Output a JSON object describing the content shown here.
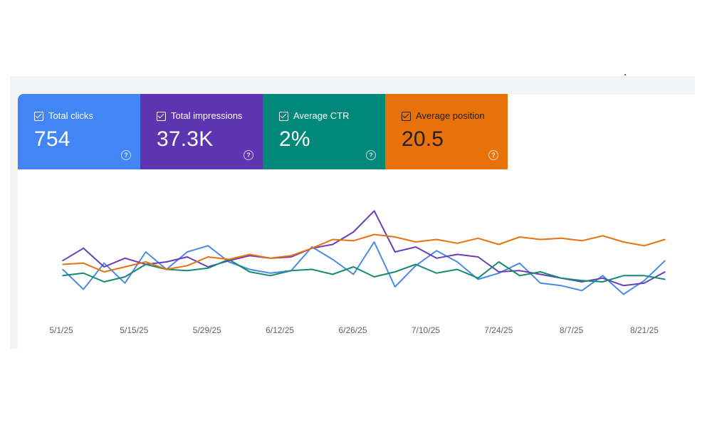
{
  "metrics": [
    {
      "label": "Total clicks",
      "value": "754",
      "color": "#4285f4",
      "text_color": "#ffffff"
    },
    {
      "label": "Total impressions",
      "value": "37.3K",
      "color": "#5e35b1",
      "text_color": "#ffffff"
    },
    {
      "label": "Average CTR",
      "value": "2%",
      "color": "#00897b",
      "text_color": "#ffffff"
    },
    {
      "label": "Average position",
      "value": "20.5",
      "color": "#e8710a",
      "text_color": "#202124"
    }
  ],
  "help_glyph": "?",
  "chart_data": {
    "type": "line",
    "x_tick_labels": [
      "5/1/25",
      "5/15/25",
      "5/29/25",
      "6/12/25",
      "6/26/25",
      "7/10/25",
      "7/24/25",
      "8/7/25",
      "8/21/25"
    ],
    "x": [
      "5/1/25",
      "5/5/25",
      "5/9/25",
      "5/13/25",
      "5/17/25",
      "5/21/25",
      "5/25/25",
      "5/29/25",
      "6/2/25",
      "6/6/25",
      "6/10/25",
      "6/14/25",
      "6/18/25",
      "6/22/25",
      "6/26/25",
      "6/30/25",
      "7/4/25",
      "7/8/25",
      "7/12/25",
      "7/16/25",
      "7/20/25",
      "7/24/25",
      "7/28/25",
      "8/1/25",
      "8/5/25",
      "8/9/25",
      "8/13/25",
      "8/17/25",
      "8/21/25",
      "8/24/25"
    ],
    "series": [
      {
        "metric": "Total clicks",
        "color": "#4a89e8",
        "values": [
          38,
          22,
          43,
          27,
          52,
          38,
          52,
          57,
          44,
          38,
          35,
          37,
          56,
          46,
          34,
          60,
          24,
          41,
          53,
          44,
          30,
          35,
          43,
          27,
          25,
          21,
          33,
          18,
          29,
          45
        ]
      },
      {
        "metric": "Total impressions",
        "color": "#6a3dbb",
        "values": [
          45,
          55,
          40,
          47,
          42,
          44,
          48,
          40,
          45,
          49,
          47,
          48,
          55,
          58,
          68,
          85,
          52,
          56,
          47,
          50,
          48,
          36,
          37,
          34,
          31,
          28,
          31,
          25,
          27,
          36
        ]
      },
      {
        "metric": "Average CTR",
        "color": "#168a72",
        "values": [
          33,
          35,
          28,
          32,
          42,
          38,
          37,
          39,
          46,
          36,
          33,
          37,
          38,
          34,
          40,
          32,
          36,
          42,
          35,
          38,
          31,
          44,
          33,
          36,
          31,
          29,
          28,
          33,
          33,
          30
        ]
      },
      {
        "metric": "Average position",
        "color": "#e8710a",
        "values": [
          42,
          43,
          36,
          40,
          44,
          38,
          41,
          48,
          46,
          50,
          47,
          49,
          55,
          62,
          61,
          66,
          64,
          60,
          62,
          59,
          63,
          58,
          64,
          62,
          63,
          61,
          65,
          60,
          57,
          62
        ]
      }
    ]
  }
}
